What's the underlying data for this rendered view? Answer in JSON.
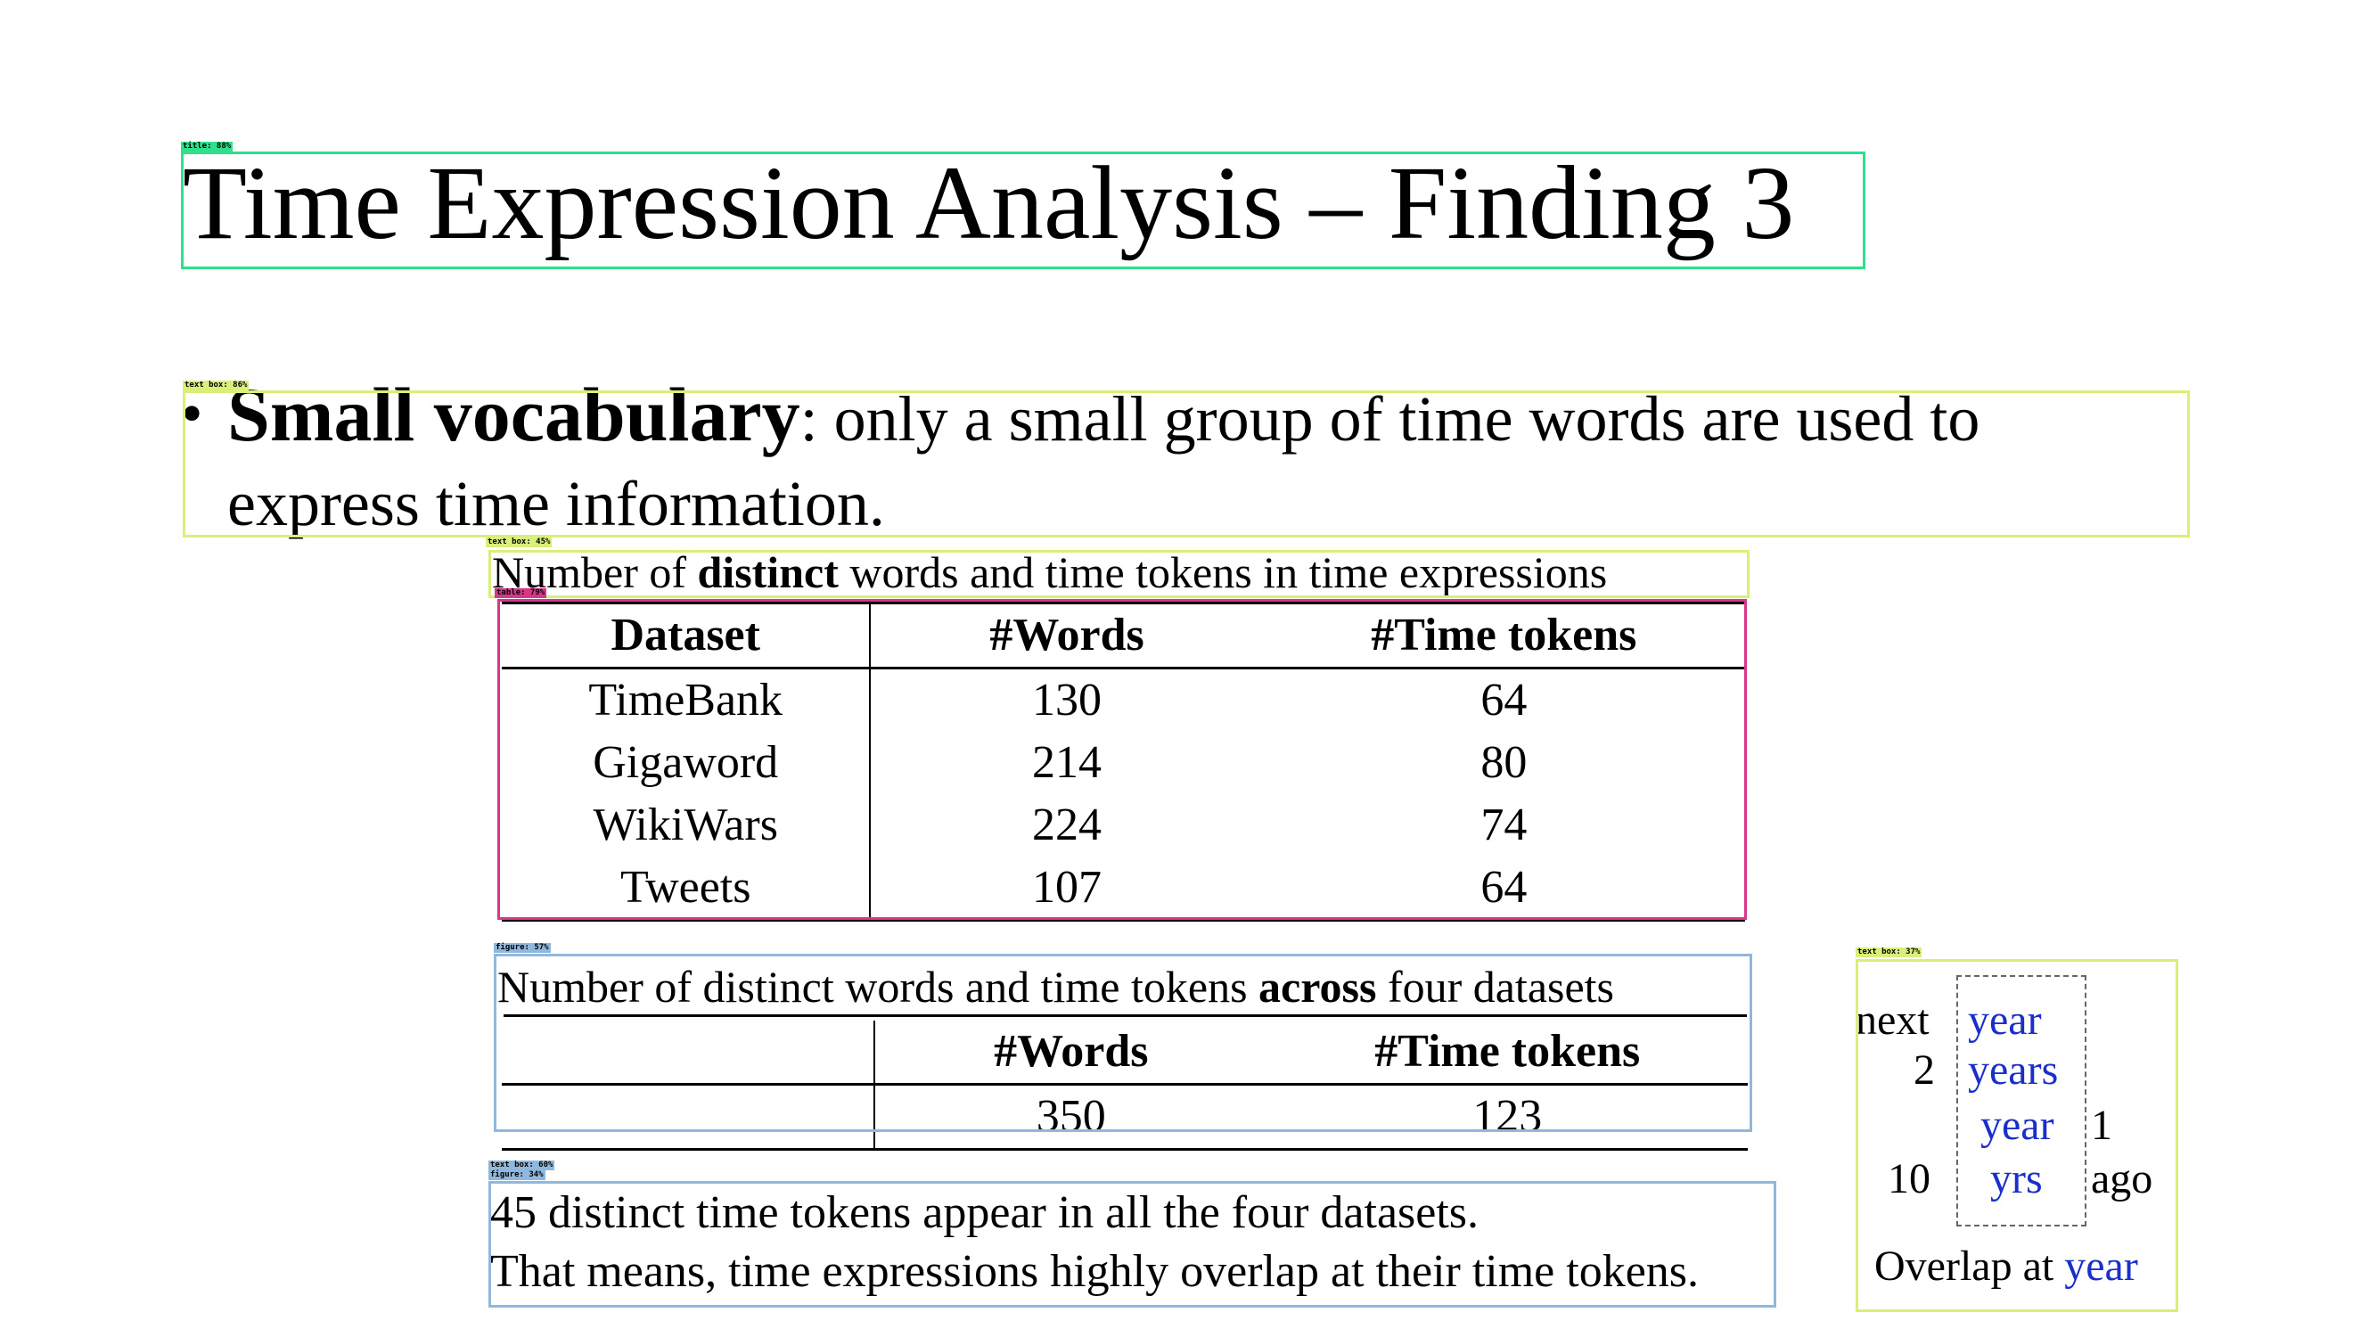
{
  "title": "Time Expression Analysis – Finding 3",
  "bullet": {
    "bold_text": "Small vocabulary",
    "rest_line1": ": only a small group of time words are used to",
    "rest_line2": "express time information."
  },
  "table1": {
    "caption_pre": "Number of ",
    "caption_bold": "distinct",
    "caption_post": " words and time tokens in time expressions",
    "headers": [
      "Dataset",
      "#Words",
      "#Time tokens"
    ],
    "rows": [
      [
        "TimeBank",
        "130",
        "64"
      ],
      [
        "Gigaword",
        "214",
        "80"
      ],
      [
        "WikiWars",
        "224",
        "74"
      ],
      [
        "Tweets",
        "107",
        "64"
      ]
    ]
  },
  "table2": {
    "caption_pre": "Number of distinct words and time tokens ",
    "caption_bold": "across",
    "caption_post": " four datasets",
    "headers": [
      "",
      "#Words",
      "#Time tokens"
    ],
    "row": [
      "",
      "350",
      "123"
    ]
  },
  "note": {
    "line1": "45 distinct time tokens appear in all the four datasets.",
    "line2": "That means, time expressions highly overlap at their time tokens."
  },
  "illustration": {
    "w_next": "next",
    "w_year1": "year",
    "w_2": "2",
    "w_years": "years",
    "w_year2": "year",
    "w_1": "1",
    "w_10": "10",
    "w_yrs": "yrs",
    "w_ago": "ago",
    "caption_pre": "Overlap at ",
    "caption_blue": "year"
  },
  "detection_labels": {
    "title": "title: 88%",
    "text_box_bullet": "text box: 86%",
    "text_box_caption": "text box: 45%",
    "table": "table: 79%",
    "figure": "figure: 57%",
    "text_box_illus": "text box: 37%",
    "text_box_note": "text box: 60%",
    "figure_note": "figure: 34%"
  },
  "colors": {
    "title_box": "#2ee08a",
    "text_box": "#d8f07a",
    "table_box": "#d8368a",
    "figure_box": "#8fb8dc",
    "accent_blue": "#1a2fc9"
  }
}
